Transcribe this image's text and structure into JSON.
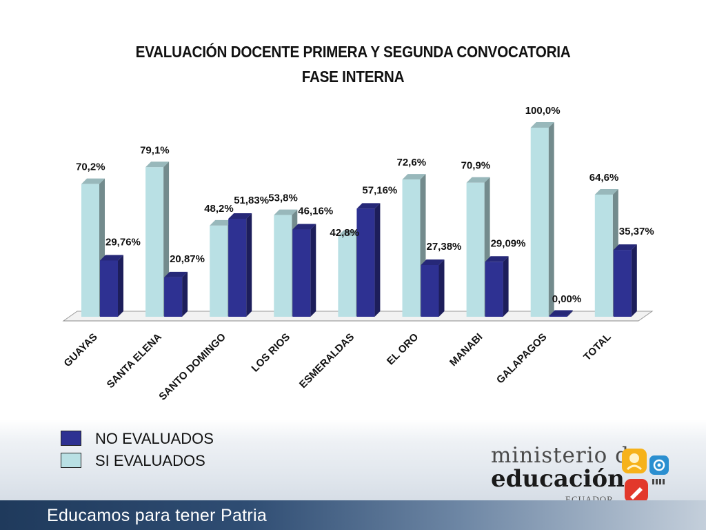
{
  "slide": {
    "footer_text": "Educamos para tener Patria",
    "logo": {
      "line1": "ministerio de",
      "line2": "educación",
      "line3": "ECUADOR"
    }
  },
  "colors": {
    "no_evaluados": "#2e3192",
    "si_evaluados": "#b9e0e4"
  },
  "chart_data": {
    "type": "bar",
    "title": [
      "EVALUACIÓN DOCENTE PRIMERA Y SEGUNDA CONVOCATORIA",
      "FASE INTERNA"
    ],
    "categories": [
      "GUAYAS",
      "SANTA ELENA",
      "SANTO DOMINGO",
      "LOS RIOS",
      "ESMERALDAS",
      "EL ORO",
      "MANABI",
      "GALAPAGOS",
      "TOTAL"
    ],
    "series": [
      {
        "name": "SI EVALUADOS",
        "values": [
          70.2,
          79.1,
          48.2,
          53.8,
          42.8,
          72.6,
          70.9,
          100.0,
          64.6
        ],
        "labels": [
          "70,2%",
          "79,1%",
          "48,2%",
          "53,8%",
          "42,8%",
          "72,6%",
          "70,9%",
          "100,0%",
          "64,6%"
        ]
      },
      {
        "name": "NO EVALUADOS",
        "values": [
          29.76,
          20.87,
          51.83,
          46.16,
          57.16,
          27.38,
          29.09,
          0.0,
          35.37
        ],
        "labels": [
          "29,76%",
          "20,87%",
          "51,83%",
          "46,16%",
          "57,16%",
          "27,38%",
          "29,09%",
          "0,00%",
          "35,37%"
        ]
      }
    ],
    "legend": [
      "NO EVALUADOS",
      "SI EVALUADOS"
    ],
    "legend_position": "bottom-left",
    "ylim": [
      0,
      100
    ],
    "grid": false,
    "style": "3d-clustered-column"
  }
}
